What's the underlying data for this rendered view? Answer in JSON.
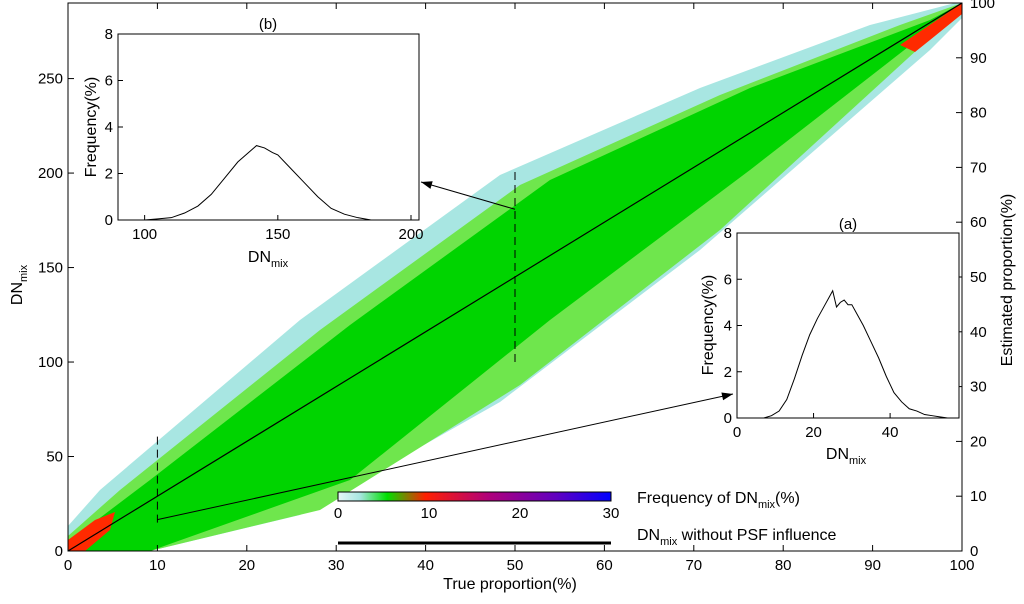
{
  "chart_data": [
    {
      "id": "main",
      "type": "heatmap",
      "xlabel": "True proportion(%)",
      "ylabel_left": {
        "base": "DN",
        "sub": "mix"
      },
      "ylabel_right": "Estimated proportion(%)",
      "xlim": [
        0,
        100
      ],
      "ylim_left": [
        0,
        290
      ],
      "ylim_right": [
        0,
        100
      ],
      "x_ticks": [
        0,
        10,
        20,
        30,
        40,
        50,
        60,
        70,
        80,
        90,
        100
      ],
      "y_ticks_left": [
        0,
        50,
        100,
        150,
        200,
        250
      ],
      "y_ticks_right": [
        0,
        10,
        20,
        30,
        40,
        50,
        60,
        70,
        80,
        90,
        100
      ],
      "line": {
        "name": "DN_mix without PSF influence",
        "x": [
          0,
          100
        ],
        "y_percent": [
          0,
          100
        ]
      },
      "dashed_markers": [
        {
          "x": 10,
          "y_range": [
            15,
            62
          ],
          "links_to": "inset_a"
        },
        {
          "x": 50,
          "y_range": [
            100,
            202
          ],
          "links_to": "inset_b"
        }
      ],
      "colorbar": {
        "label": {
          "base": "Frequency of DN",
          "sub": "mix",
          "suffix": "(%)"
        },
        "ticks": [
          0,
          10,
          20,
          30
        ],
        "range": [
          0,
          30
        ]
      },
      "legend_line": {
        "base": "DN",
        "sub": "mix",
        "suffix": " without PSF influence"
      }
    },
    {
      "id": "inset_a",
      "type": "line",
      "title": "(a)",
      "xlabel": {
        "base": "DN",
        "sub": "mix"
      },
      "ylabel": "Frequency(%)",
      "xlim": [
        0,
        58
      ],
      "ylim": [
        0,
        8
      ],
      "x_ticks": [
        0,
        20,
        40
      ],
      "y_ticks": [
        0,
        2,
        4,
        6,
        8
      ],
      "x": [
        7,
        9,
        11,
        13,
        15,
        17,
        19,
        21,
        23,
        24,
        25,
        26,
        27,
        28,
        29,
        30,
        31,
        33,
        35,
        37,
        39,
        41,
        43,
        45,
        47,
        49,
        51,
        53,
        55
      ],
      "y": [
        0.0,
        0.1,
        0.3,
        0.8,
        1.7,
        2.7,
        3.6,
        4.3,
        4.9,
        5.2,
        5.5,
        4.8,
        5.0,
        5.1,
        4.9,
        4.9,
        4.6,
        4.0,
        3.3,
        2.6,
        1.8,
        1.1,
        0.7,
        0.4,
        0.3,
        0.15,
        0.1,
        0.05,
        0.0
      ]
    },
    {
      "id": "inset_b",
      "type": "line",
      "title": "(b)",
      "xlabel": {
        "base": "DN",
        "sub": "mix"
      },
      "ylabel": "Frequency(%)",
      "xlim": [
        90,
        203
      ],
      "ylim": [
        0,
        8
      ],
      "x_ticks": [
        100,
        150,
        200
      ],
      "y_ticks": [
        0,
        2,
        4,
        6,
        8
      ],
      "x": [
        100,
        105,
        110,
        115,
        120,
        125,
        130,
        135,
        140,
        142,
        145,
        148,
        150,
        155,
        160,
        165,
        170,
        175,
        180,
        185
      ],
      "y": [
        0.0,
        0.05,
        0.1,
        0.3,
        0.6,
        1.1,
        1.8,
        2.5,
        3.0,
        3.2,
        3.1,
        2.9,
        2.8,
        2.2,
        1.6,
        1.0,
        0.5,
        0.25,
        0.1,
        0.0
      ]
    }
  ],
  "colors": {
    "cmap": [
      "#a8e6e2",
      "#00e000",
      "#ff2000",
      "#a000a0",
      "#0000ff"
    ],
    "line": "#000000"
  }
}
